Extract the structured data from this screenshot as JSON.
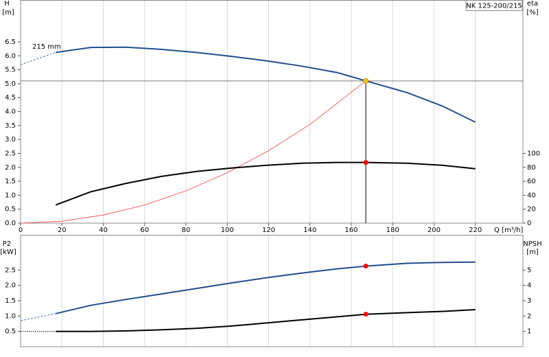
{
  "chart_data": [
    {
      "type": "line",
      "title": "NK 125-200/215",
      "annotation": "215 mm",
      "ylabel": "H",
      "yunit": "[m]",
      "y2label": "eta",
      "y2unit": "[%]",
      "xlabel": "Q [m³/h]",
      "xlim": [
        0,
        243
      ],
      "xticks": [
        0,
        20,
        40,
        60,
        80,
        100,
        120,
        140,
        160,
        180,
        200,
        220
      ],
      "ylim": [
        0,
        8
      ],
      "yticks": [
        {
          "value": 0,
          "label": "0.0"
        },
        0.5,
        {
          "value": 1,
          "label": "1.0"
        },
        1.5,
        {
          "value": 2,
          "label": "2.0"
        },
        2.5,
        {
          "value": 3,
          "label": "3.0"
        },
        3.5,
        {
          "value": 4,
          "label": "4.0"
        },
        4.5,
        {
          "value": 5,
          "label": "5.0"
        },
        5.5,
        {
          "value": 6,
          "label": "6.0"
        },
        6.5
      ],
      "y2lim": [
        0,
        320
      ],
      "y2ticks": [
        0,
        20,
        40,
        60,
        80,
        100
      ],
      "grid": "x",
      "series": [
        {
          "color": "#4a6fa5",
          "style": "dashed",
          "axis": "y",
          "x": [
            0,
            17
          ],
          "values": [
            5.68,
            6.12
          ]
        },
        {
          "color": "#1f4e8c",
          "style": "solid",
          "axis": "y",
          "x": [
            17,
            34,
            51,
            68,
            85,
            102,
            119,
            136,
            153,
            167,
            187,
            204,
            220
          ],
          "values": [
            6.12,
            6.3,
            6.31,
            6.23,
            6.12,
            5.98,
            5.82,
            5.63,
            5.4,
            5.1,
            4.68,
            4.2,
            3.62
          ]
        },
        {
          "color": "#ff4040",
          "style": "thin",
          "axis": "y",
          "x": [
            0,
            20,
            40,
            60,
            80,
            100,
            120,
            140,
            167
          ],
          "values": [
            0,
            0.07,
            0.29,
            0.65,
            1.16,
            1.81,
            2.6,
            3.54,
            5.1
          ]
        },
        {
          "color": "#000000",
          "style": "solid",
          "axis": "y2",
          "x": [
            17,
            34,
            51,
            68,
            85,
            102,
            119,
            136,
            153,
            167,
            187,
            204,
            220
          ],
          "values": [
            26,
            45,
            57,
            67,
            74,
            79,
            83,
            86,
            87,
            87,
            86,
            83,
            78
          ]
        },
        {
          "color": "#f5c518",
          "style": "point",
          "crosshair": true,
          "axis": "y",
          "x": [
            167
          ],
          "values": [
            5.1
          ]
        },
        {
          "color": "#ff0000",
          "style": "point",
          "axis": "y2",
          "x": [
            167
          ],
          "values": [
            87
          ]
        }
      ]
    },
    {
      "type": "line",
      "ylabel": "P2",
      "yunit": "[kW]",
      "y2label": "NPSH",
      "y2unit": "[m]",
      "xlim": [
        0,
        243
      ],
      "ylim": [
        0,
        3.65
      ],
      "yticks": [
        0.5,
        {
          "value": 1,
          "label": "1.0"
        },
        1.5,
        {
          "value": 2,
          "label": "2.0"
        },
        2.5
      ],
      "y2lim": [
        0,
        7.3
      ],
      "y2ticks": [
        1,
        2,
        3,
        4,
        5
      ],
      "grid": "x",
      "series": [
        {
          "color": "#4a6fa5",
          "style": "dashed",
          "axis": "y",
          "x": [
            0,
            17
          ],
          "values": [
            0.85,
            1.08
          ]
        },
        {
          "color": "#1f4e8c",
          "style": "solid",
          "axis": "y",
          "x": [
            17,
            34,
            51,
            68,
            85,
            102,
            119,
            136,
            153,
            167,
            187,
            204,
            220
          ],
          "values": [
            1.08,
            1.35,
            1.54,
            1.72,
            1.9,
            2.08,
            2.25,
            2.4,
            2.54,
            2.63,
            2.72,
            2.75,
            2.76
          ]
        },
        {
          "color": "#000000",
          "style": "dotted",
          "axis": "y2",
          "x": [
            0,
            17
          ],
          "values": [
            1.0,
            1.0
          ]
        },
        {
          "color": "#000000",
          "style": "solid",
          "axis": "y2",
          "x": [
            17,
            34,
            51,
            68,
            85,
            102,
            119,
            136,
            153,
            167,
            187,
            204,
            220
          ],
          "values": [
            1.0,
            1.0,
            1.03,
            1.1,
            1.2,
            1.35,
            1.55,
            1.75,
            1.95,
            2.12,
            2.22,
            2.3,
            2.42
          ]
        },
        {
          "color": "#ff0000",
          "style": "point",
          "axis": "y",
          "x": [
            167
          ],
          "values": [
            2.63
          ]
        },
        {
          "color": "#ff0000",
          "style": "point",
          "axis": "y2",
          "x": [
            167
          ],
          "values": [
            2.12
          ]
        }
      ]
    }
  ]
}
